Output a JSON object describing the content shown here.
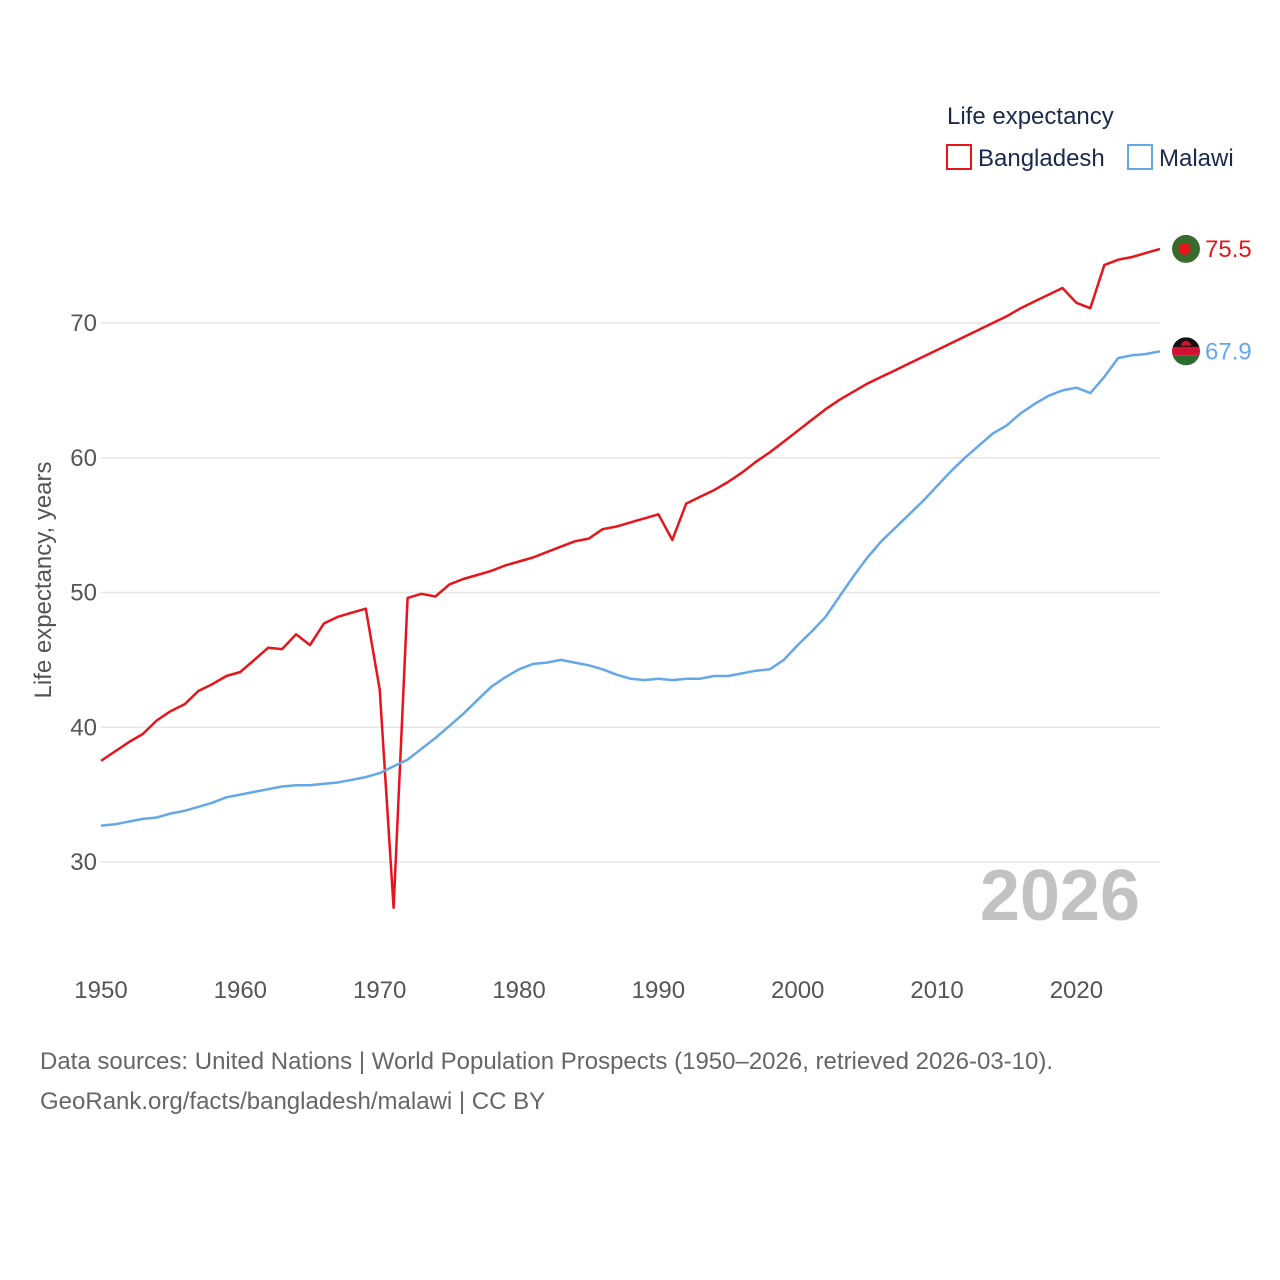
{
  "chart_data": {
    "type": "line",
    "legend_title": "Life expectancy",
    "ylabel": "Life expectancy, years",
    "xlim": [
      1950,
      2026
    ],
    "ylim": [
      25,
      80
    ],
    "xticks": [
      "1950",
      "1960",
      "1970",
      "1980",
      "1990",
      "2000",
      "2010",
      "2020"
    ],
    "yticks": [
      "30",
      "40",
      "50",
      "60",
      "70"
    ],
    "year_label": "2026",
    "series": [
      {
        "name": "Bangladesh",
        "color": "#e8141c",
        "end_label": "75.5",
        "years": [
          1950,
          1951,
          1952,
          1953,
          1954,
          1955,
          1956,
          1957,
          1958,
          1959,
          1960,
          1961,
          1962,
          1963,
          1964,
          1965,
          1966,
          1967,
          1968,
          1969,
          1970,
          1971,
          1972,
          1973,
          1974,
          1975,
          1976,
          1977,
          1978,
          1979,
          1980,
          1981,
          1982,
          1983,
          1984,
          1985,
          1986,
          1987,
          1988,
          1989,
          1990,
          1991,
          1992,
          1993,
          1994,
          1995,
          1996,
          1997,
          1998,
          1999,
          2000,
          2001,
          2002,
          2003,
          2004,
          2005,
          2006,
          2007,
          2008,
          2009,
          2010,
          2011,
          2012,
          2013,
          2014,
          2015,
          2016,
          2017,
          2018,
          2019,
          2020,
          2021,
          2022,
          2023,
          2024,
          2025,
          2026
        ],
        "values": [
          37.5,
          38.2,
          38.9,
          39.5,
          40.5,
          41.2,
          41.7,
          42.7,
          43.2,
          43.8,
          44.1,
          45.0,
          45.9,
          45.8,
          46.9,
          46.1,
          47.7,
          48.2,
          48.5,
          48.8,
          42.8,
          26.6,
          49.6,
          49.9,
          49.7,
          50.6,
          51.0,
          51.3,
          51.6,
          52.0,
          52.3,
          52.6,
          53.0,
          53.4,
          53.8,
          54.0,
          54.7,
          54.9,
          55.2,
          55.5,
          55.8,
          53.9,
          56.6,
          57.1,
          57.6,
          58.2,
          58.9,
          59.7,
          60.4,
          61.2,
          62.0,
          62.8,
          63.6,
          64.3,
          64.9,
          65.5,
          66.0,
          66.5,
          67.0,
          67.5,
          68.0,
          68.5,
          69.0,
          69.5,
          70.0,
          70.5,
          71.1,
          71.6,
          72.1,
          72.6,
          71.5,
          71.1,
          74.3,
          74.7,
          74.9,
          75.2,
          75.5
        ]
      },
      {
        "name": "Malawi",
        "color": "#64a8e8",
        "end_label": "67.9",
        "years": [
          1950,
          1951,
          1952,
          1953,
          1954,
          1955,
          1956,
          1957,
          1958,
          1959,
          1960,
          1961,
          1962,
          1963,
          1964,
          1965,
          1966,
          1967,
          1968,
          1969,
          1970,
          1971,
          1972,
          1973,
          1974,
          1975,
          1976,
          1977,
          1978,
          1979,
          1980,
          1981,
          1982,
          1983,
          1984,
          1985,
          1986,
          1987,
          1988,
          1989,
          1990,
          1991,
          1992,
          1993,
          1994,
          1995,
          1996,
          1997,
          1998,
          1999,
          2000,
          2001,
          2002,
          2003,
          2004,
          2005,
          2006,
          2007,
          2008,
          2009,
          2010,
          2011,
          2012,
          2013,
          2014,
          2015,
          2016,
          2017,
          2018,
          2019,
          2020,
          2021,
          2022,
          2023,
          2024,
          2025,
          2026
        ],
        "values": [
          32.7,
          32.8,
          33.0,
          33.2,
          33.3,
          33.6,
          33.8,
          34.1,
          34.4,
          34.8,
          35.0,
          35.2,
          35.4,
          35.6,
          35.7,
          35.7,
          35.8,
          35.9,
          36.1,
          36.3,
          36.6,
          37.1,
          37.6,
          38.4,
          39.2,
          40.1,
          41.0,
          42.0,
          43.0,
          43.7,
          44.3,
          44.7,
          44.8,
          45.0,
          44.8,
          44.6,
          44.3,
          43.9,
          43.6,
          43.5,
          43.6,
          43.5,
          43.6,
          43.6,
          43.8,
          43.8,
          44.0,
          44.2,
          44.3,
          45.0,
          46.1,
          47.1,
          48.2,
          49.7,
          51.2,
          52.6,
          53.8,
          54.8,
          55.8,
          56.8,
          57.9,
          59.0,
          60.0,
          60.9,
          61.8,
          62.4,
          63.3,
          64.0,
          64.6,
          65.0,
          65.2,
          64.8,
          66.0,
          67.4,
          67.6,
          67.7,
          67.9
        ]
      }
    ]
  },
  "footer": {
    "sources": "Data sources: United Nations | World Population Prospects (1950–2026, retrieved 2026-03-10).",
    "credit": "GeoRank.org/facts/bangladesh/malawi | CC BY"
  }
}
